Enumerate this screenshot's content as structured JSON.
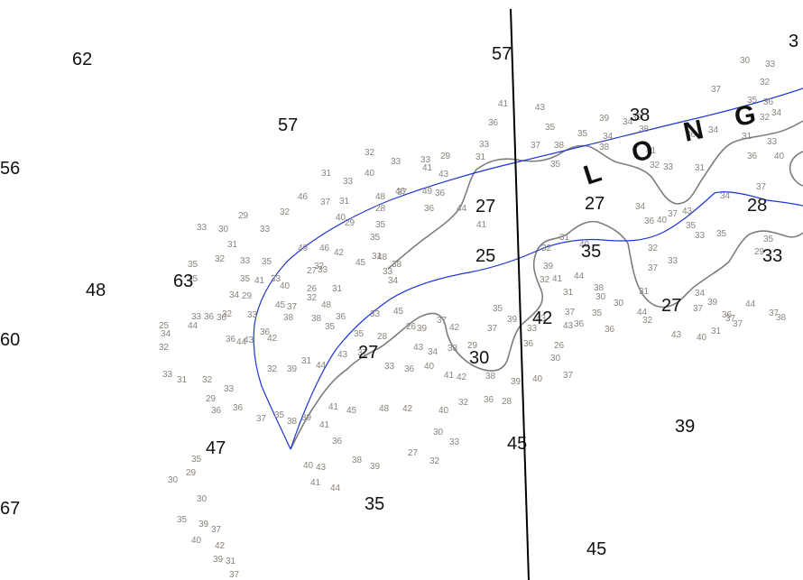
{
  "colors": {
    "background": "#ffffff",
    "major_sounding": "#111111",
    "minor_sounding": "#8a847c",
    "contour": "#7d7d7d",
    "route_line": "#1f34d8",
    "meridian": "#000000"
  },
  "map": {
    "label_letters": [
      "L",
      "O",
      "N",
      "G"
    ],
    "major_soundings": [
      "62",
      "57",
      "57",
      "3",
      "38",
      "56",
      "27",
      "27",
      "28",
      "48",
      "63",
      "25",
      "35",
      "33",
      "60",
      "42",
      "27",
      "27",
      "30",
      "39",
      "47",
      "45",
      "35",
      "67",
      "45"
    ],
    "minor_soundings": [
      "41",
      "43",
      "36",
      "35",
      "39",
      "34",
      "33",
      "37",
      "38",
      "35",
      "34",
      "31",
      "35",
      "33",
      "31",
      "34",
      "36",
      "37",
      "30",
      "33",
      "32",
      "35",
      "36",
      "34",
      "32",
      "31",
      "33",
      "40",
      "36",
      "37",
      "34",
      "35",
      "35",
      "29",
      "33",
      "32",
      "33",
      "29",
      "31",
      "33",
      "40",
      "48",
      "41",
      "43",
      "49",
      "46",
      "37",
      "36",
      "37",
      "31",
      "46",
      "40",
      "35",
      "35",
      "31",
      "29",
      "28",
      "36",
      "44",
      "41",
      "29",
      "30",
      "33",
      "32",
      "31",
      "33",
      "32",
      "33",
      "35",
      "33",
      "49",
      "46",
      "42",
      "48",
      "45",
      "38",
      "27",
      "33",
      "33",
      "34",
      "35",
      "35",
      "35",
      "41",
      "40",
      "26",
      "32",
      "34",
      "29",
      "31",
      "32",
      "48",
      "45",
      "37",
      "32",
      "33",
      "33",
      "36",
      "38",
      "38",
      "36",
      "33",
      "45",
      "25",
      "32",
      "34",
      "44",
      "36",
      "35",
      "36",
      "42",
      "36",
      "44",
      "43",
      "35",
      "28",
      "26",
      "33",
      "31",
      "32",
      "33",
      "32",
      "39",
      "31",
      "44",
      "43",
      "37",
      "33",
      "36",
      "40",
      "41",
      "42",
      "38",
      "39",
      "40",
      "37",
      "30",
      "26",
      "43",
      "43",
      "36",
      "39",
      "33",
      "37",
      "35",
      "37",
      "42",
      "39",
      "43",
      "34",
      "33",
      "29",
      "29",
      "36",
      "36",
      "37",
      "35",
      "38",
      "39",
      "41",
      "41",
      "45",
      "48",
      "42",
      "40",
      "32",
      "36",
      "28",
      "30",
      "27",
      "32",
      "33",
      "36",
      "38",
      "39",
      "40",
      "43",
      "41",
      "44",
      "30",
      "29",
      "35",
      "30",
      "35",
      "39",
      "37",
      "40",
      "42",
      "39",
      "31",
      "37",
      "38",
      "39",
      "38",
      "41",
      "32",
      "34",
      "36",
      "40",
      "37",
      "43",
      "35",
      "33",
      "32",
      "33",
      "37",
      "34",
      "39",
      "36",
      "37",
      "44",
      "37",
      "38",
      "37",
      "32",
      "43",
      "40",
      "31",
      "37",
      "44",
      "38",
      "30",
      "44",
      "31",
      "40",
      "31",
      "32",
      "39",
      "32",
      "41",
      "31",
      "37",
      "36",
      "35",
      "36",
      "30"
    ]
  }
}
